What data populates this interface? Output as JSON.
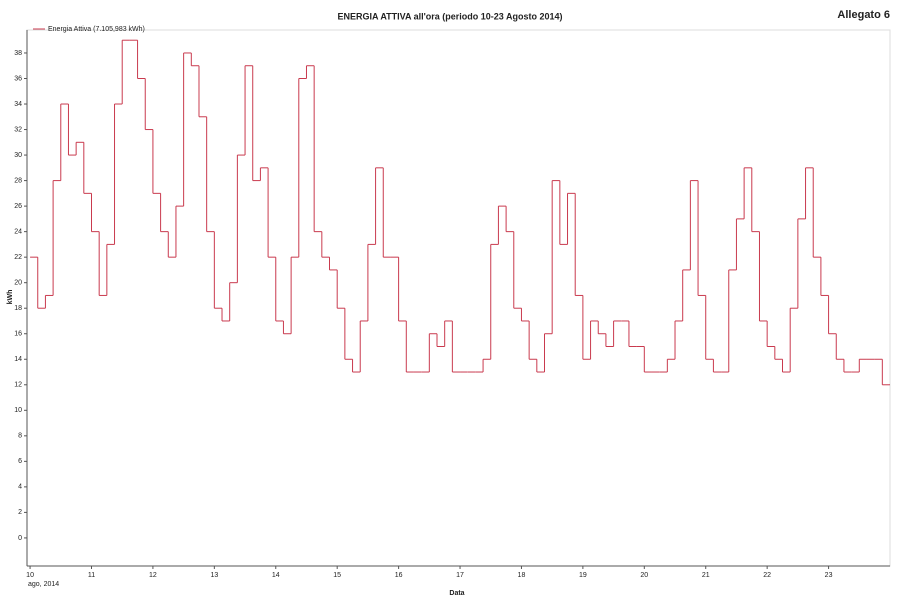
{
  "chart_data": {
    "type": "step-line",
    "title": "ENERGIA ATTIVA all'ora (periodo 10-23 Agosto 2014)",
    "corner_label": "Allegato 6",
    "x_label": "Data",
    "x_sublabel": "ago, 2014",
    "y_label": "kWh",
    "legend_position": "top-left",
    "grid": false,
    "xlim": [
      9.95,
      24
    ],
    "ylim": [
      -2.2,
      39.8
    ],
    "xticks": [
      10,
      11,
      12,
      13,
      14,
      15,
      16,
      17,
      18,
      19,
      20,
      21,
      22,
      23
    ],
    "yticks": [
      0,
      2,
      4,
      6,
      8,
      10,
      12,
      14,
      16,
      18,
      20,
      22,
      24,
      26,
      28,
      30,
      32,
      34,
      36,
      38
    ],
    "x": [
      10,
      10.125,
      10.25,
      10.375,
      10.5,
      10.625,
      10.75,
      10.875,
      11,
      11.125,
      11.25,
      11.375,
      11.5,
      11.625,
      11.75,
      11.875,
      12,
      12.125,
      12.25,
      12.375,
      12.5,
      12.625,
      12.75,
      12.875,
      13,
      13.125,
      13.25,
      13.375,
      13.5,
      13.625,
      13.75,
      13.875,
      14,
      14.125,
      14.25,
      14.375,
      14.5,
      14.625,
      14.75,
      14.875,
      15,
      15.125,
      15.25,
      15.375,
      15.5,
      15.625,
      15.75,
      15.875,
      16,
      16.125,
      16.25,
      16.375,
      16.5,
      16.625,
      16.75,
      16.875,
      17,
      17.125,
      17.25,
      17.375,
      17.5,
      17.625,
      17.75,
      17.875,
      18,
      18.125,
      18.25,
      18.375,
      18.5,
      18.625,
      18.75,
      18.875,
      19,
      19.125,
      19.25,
      19.375,
      19.5,
      19.625,
      19.75,
      19.875,
      20,
      20.125,
      20.25,
      20.375,
      20.5,
      20.625,
      20.75,
      20.875,
      21,
      21.125,
      21.25,
      21.375,
      21.5,
      21.625,
      21.75,
      21.875,
      22,
      22.125,
      22.25,
      22.375,
      22.5,
      22.625,
      22.75,
      22.875,
      23,
      23.125,
      23.25,
      23.375,
      23.5,
      23.625,
      23.75,
      23.875
    ],
    "series": [
      {
        "name": "Energia Attiva (7.105,983 kWh)",
        "color": "#c93a4e",
        "values": [
          22,
          18,
          19,
          28,
          34,
          30,
          31,
          27,
          24,
          19,
          23,
          34,
          39,
          39,
          36,
          32,
          27,
          24,
          22,
          26,
          38,
          37,
          33,
          24,
          18,
          17,
          20,
          30,
          37,
          28,
          29,
          22,
          17,
          16,
          22,
          36,
          37,
          24,
          22,
          21,
          18,
          14,
          13,
          17,
          23,
          29,
          22,
          22,
          17,
          13,
          13,
          13,
          16,
          15,
          17,
          13,
          13,
          13,
          13,
          14,
          23,
          26,
          24,
          18,
          17,
          14,
          13,
          16,
          28,
          23,
          27,
          19,
          14,
          17,
          16,
          15,
          17,
          17,
          15,
          15,
          13,
          13,
          13,
          14,
          17,
          21,
          28,
          19,
          14,
          13,
          13,
          21,
          25,
          29,
          24,
          17,
          15,
          14,
          13,
          18,
          25,
          29,
          22,
          19,
          16,
          14,
          13,
          13,
          14,
          14,
          14,
          12
        ]
      }
    ]
  }
}
